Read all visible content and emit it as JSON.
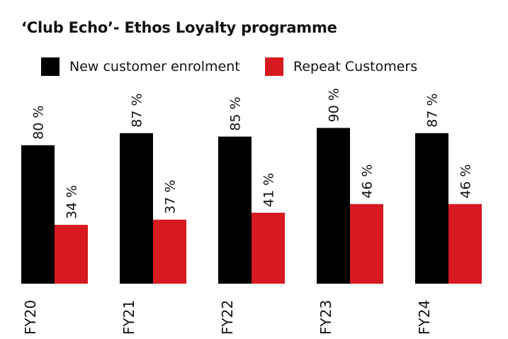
{
  "chart_data": {
    "type": "bar",
    "title": "‘Club Echo’- Ethos Loyalty programme",
    "categories": [
      "FY20",
      "FY21",
      "FY22",
      "FY23",
      "FY24"
    ],
    "series": [
      {
        "name": "New customer enrolment",
        "color": "#000000",
        "values": [
          80,
          87,
          85,
          90,
          87
        ],
        "labels": [
          "80 %",
          "87 %",
          "85 %",
          "90 %",
          "87 %"
        ]
      },
      {
        "name": "Repeat Customers",
        "color": "#d71920",
        "values": [
          34,
          37,
          41,
          46,
          46
        ],
        "labels": [
          "34 %",
          "37 %",
          "41 %",
          "46 %",
          "46 %"
        ]
      }
    ],
    "ylim": [
      0,
      100
    ],
    "grid": false,
    "legend_position": "top-left",
    "xlabel": "",
    "ylabel": ""
  }
}
